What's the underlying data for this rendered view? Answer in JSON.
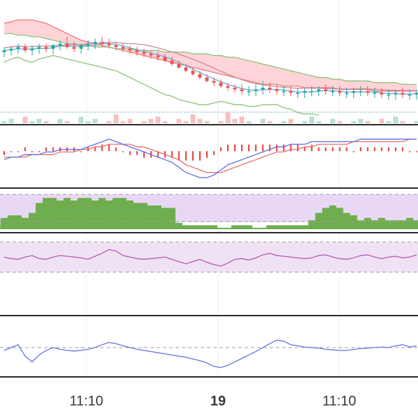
{
  "colors": {
    "up": "#26a69a",
    "down": "#ef5350",
    "cloud": "#ffcdd2",
    "cloud_line_a": "#ef7676",
    "cloud_line_b": "#8cc07a",
    "ma_blue": "#5dade2",
    "ma_pink": "#c98a9a",
    "lagging": "#8cc07a",
    "base_line": "#5fb3b3",
    "macd_line": "#5b6ee1",
    "signal_line": "#f06a6a",
    "hist": "#e53935",
    "volume_band": "#e9d8f5",
    "volume_bar": "#6fae4f",
    "rsi_band": "#f0e2f5",
    "rsi_line": "#b45ab4",
    "osc_line": "#6672e6",
    "guide": "#9e9e9e",
    "grid": "#ececec",
    "divider": "#2b2b2b"
  },
  "chart_data": [
    {
      "type": "candlestick",
      "panel": "price",
      "x": [
        0,
        1,
        2,
        3,
        4,
        5,
        6,
        7,
        8,
        9,
        10,
        11,
        12,
        13,
        14,
        15,
        16,
        17,
        18,
        19,
        20,
        21,
        22,
        23,
        24,
        25,
        26,
        27,
        28,
        29,
        30,
        31,
        32,
        33,
        34,
        35,
        36,
        37,
        38,
        39,
        40,
        41,
        42,
        43,
        44,
        45,
        46,
        47,
        48,
        49,
        50,
        51,
        52,
        53,
        54,
        55,
        56,
        57,
        58,
        59
      ],
      "open": [
        75,
        76,
        77,
        78,
        76,
        77,
        78,
        77,
        79,
        80,
        78,
        77,
        79,
        80,
        81,
        80,
        79,
        78,
        77,
        76,
        75,
        74,
        73,
        72,
        70,
        68,
        66,
        64,
        62,
        60,
        58,
        57,
        55,
        54,
        53,
        52,
        52,
        53,
        54,
        53,
        52,
        52,
        51,
        51,
        52,
        52,
        53,
        52,
        52,
        51,
        51,
        52,
        52,
        51,
        51,
        50,
        50,
        51,
        50,
        50
      ],
      "high": [
        78,
        79,
        80,
        80,
        79,
        80,
        80,
        80,
        82,
        84,
        81,
        80,
        82,
        83,
        84,
        83,
        81,
        80,
        79,
        78,
        77,
        76,
        75,
        74,
        72,
        70,
        68,
        66,
        64,
        62,
        60,
        59,
        57,
        56,
        56,
        55,
        56,
        58,
        57,
        56,
        55,
        55,
        54,
        54,
        55,
        55,
        56,
        55,
        55,
        54,
        54,
        55,
        55,
        54,
        54,
        53,
        53,
        54,
        53,
        53
      ],
      "low": [
        72,
        73,
        74,
        75,
        73,
        74,
        75,
        74,
        76,
        77,
        75,
        74,
        76,
        77,
        78,
        77,
        76,
        75,
        74,
        73,
        72,
        71,
        70,
        69,
        67,
        65,
        63,
        61,
        59,
        57,
        55,
        54,
        52,
        51,
        50,
        49,
        49,
        50,
        51,
        50,
        49,
        49,
        48,
        48,
        49,
        49,
        50,
        49,
        49,
        48,
        48,
        49,
        49,
        48,
        48,
        47,
        47,
        48,
        47,
        47
      ],
      "close": [
        76,
        77,
        78,
        76,
        77,
        78,
        77,
        79,
        80,
        78,
        77,
        79,
        80,
        81,
        80,
        79,
        78,
        77,
        76,
        75,
        74,
        73,
        72,
        70,
        68,
        66,
        64,
        62,
        60,
        58,
        57,
        55,
        54,
        53,
        52,
        52,
        53,
        54,
        53,
        52,
        52,
        51,
        51,
        52,
        52,
        53,
        52,
        52,
        51,
        51,
        52,
        52,
        51,
        51,
        50,
        50,
        51,
        50,
        50,
        51
      ],
      "cloud_span_a": [
        92,
        93,
        94,
        94,
        94,
        93,
        92,
        90,
        88,
        86,
        84,
        82,
        81,
        80,
        79,
        78,
        77,
        76,
        75,
        74,
        73,
        72,
        71,
        70,
        69,
        68,
        67,
        66,
        65,
        64,
        63,
        62,
        61,
        60,
        59,
        58,
        57,
        56,
        56,
        56,
        55,
        55,
        55,
        54,
        54,
        54,
        54,
        54,
        53,
        53,
        53,
        53,
        53,
        52,
        52,
        52,
        52,
        52,
        52,
        52
      ],
      "cloud_span_b": [
        86,
        86,
        85,
        85,
        84,
        84,
        83,
        82,
        81,
        80,
        80,
        79,
        79,
        78,
        78,
        78,
        77,
        77,
        77,
        76,
        76,
        76,
        76,
        75,
        75,
        75,
        75,
        74,
        74,
        74,
        73,
        73,
        72,
        72,
        71,
        70,
        69,
        68,
        67,
        66,
        65,
        64,
        63,
        62,
        61,
        60,
        60,
        59,
        59,
        58,
        58,
        58,
        58,
        57,
        57,
        57,
        57,
        56,
        56,
        56
      ]
    },
    {
      "type": "bar",
      "panel": "volume_strip",
      "values": [
        1,
        2,
        0,
        3,
        1,
        2,
        1,
        0,
        2,
        1,
        0,
        3,
        1,
        2,
        0,
        1,
        4,
        1,
        2,
        0,
        1,
        2,
        3,
        1,
        0,
        2,
        1,
        4,
        2,
        1,
        0,
        1,
        5,
        2,
        3,
        1,
        0,
        2,
        1,
        0,
        1,
        2,
        0,
        1,
        3,
        1,
        0,
        2,
        1,
        0,
        1,
        2,
        1,
        0,
        2,
        1,
        3,
        1,
        0,
        1
      ]
    },
    {
      "type": "line",
      "panel": "macd",
      "macd": [
        -2,
        -1,
        -1,
        0,
        0,
        0,
        1,
        1,
        2,
        2,
        2,
        2,
        3,
        4,
        5,
        6,
        5,
        4,
        3,
        2,
        1,
        0,
        -1,
        -2,
        -3,
        -5,
        -7,
        -8,
        -9,
        -9,
        -8,
        -6,
        -4,
        -3,
        -2,
        -1,
        0,
        1,
        2,
        3,
        3,
        4,
        4,
        4,
        5,
        5,
        5,
        5,
        5,
        5,
        5,
        6,
        6,
        6,
        6,
        6,
        6,
        6,
        6,
        6
      ],
      "signal": [
        -1,
        -1,
        -1,
        -1,
        0,
        0,
        0,
        0,
        1,
        1,
        1,
        2,
        2,
        3,
        3,
        4,
        4,
        4,
        4,
        3,
        3,
        2,
        1,
        0,
        -1,
        -2,
        -4,
        -5,
        -6,
        -7,
        -7,
        -7,
        -6,
        -5,
        -4,
        -3,
        -2,
        -1,
        0,
        1,
        1,
        2,
        2,
        3,
        3,
        4,
        4,
        4,
        4,
        4,
        5,
        5,
        5,
        5,
        5,
        5,
        5,
        5,
        6,
        6
      ],
      "histogram": [
        -1,
        0,
        0,
        1,
        0,
        0,
        1,
        1,
        1,
        1,
        1,
        0,
        1,
        1,
        2,
        2,
        1,
        0,
        -1,
        -1,
        -2,
        -2,
        -2,
        -2,
        -2,
        -3,
        -3,
        -3,
        -3,
        -2,
        -1,
        1,
        2,
        2,
        2,
        2,
        2,
        2,
        2,
        2,
        2,
        2,
        2,
        1,
        2,
        1,
        1,
        1,
        1,
        1,
        0,
        1,
        1,
        1,
        1,
        1,
        1,
        1,
        0,
        0
      ]
    },
    {
      "type": "area",
      "panel": "volume",
      "values": [
        4,
        5,
        5,
        4,
        6,
        10,
        12,
        12,
        11,
        12,
        11,
        12,
        12,
        11,
        12,
        11,
        12,
        12,
        11,
        10,
        10,
        9,
        9,
        8,
        8,
        2,
        1,
        1,
        1,
        1,
        1,
        0,
        0,
        1,
        1,
        1,
        0,
        0,
        1,
        1,
        1,
        1,
        1,
        1,
        3,
        6,
        8,
        9,
        8,
        6,
        5,
        3,
        4,
        3,
        4,
        3,
        3,
        3,
        4,
        3
      ],
      "band": [
        0,
        14
      ]
    },
    {
      "type": "line",
      "panel": "rsi",
      "values": [
        50,
        48,
        47,
        50,
        52,
        48,
        47,
        50,
        52,
        51,
        50,
        49,
        47,
        51,
        55,
        60,
        58,
        52,
        50,
        48,
        47,
        48,
        49,
        50,
        47,
        44,
        41,
        44,
        47,
        43,
        40,
        38,
        42,
        47,
        48,
        46,
        49,
        53,
        55,
        52,
        51,
        50,
        49,
        48,
        49,
        52,
        53,
        50,
        48,
        47,
        49,
        52,
        53,
        50,
        48,
        50,
        51,
        49,
        50,
        53
      ],
      "band": [
        30,
        70
      ]
    },
    {
      "type": "line",
      "panel": "oscillator",
      "values": [
        50,
        55,
        60,
        40,
        30,
        42,
        50,
        55,
        52,
        50,
        49,
        50,
        52,
        55,
        60,
        64,
        62,
        58,
        55,
        52,
        50,
        48,
        46,
        44,
        42,
        40,
        38,
        35,
        32,
        28,
        22,
        20,
        24,
        30,
        36,
        42,
        48,
        55,
        62,
        68,
        66,
        60,
        58,
        56,
        55,
        54,
        52,
        51,
        50,
        50,
        52,
        53,
        54,
        55,
        56,
        55,
        58,
        60,
        56,
        58
      ],
      "guide": 55
    }
  ],
  "axis": {
    "ticks": [
      {
        "label": "11:10",
        "bold": false
      },
      {
        "label": "19",
        "bold": true
      },
      {
        "label": "11:10",
        "bold": false
      }
    ]
  }
}
